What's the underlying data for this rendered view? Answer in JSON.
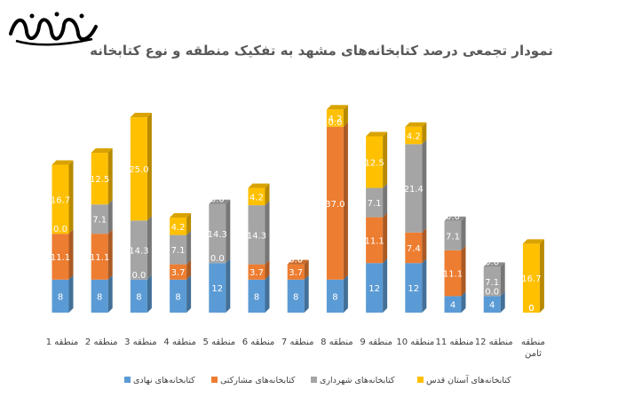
{
  "chart_data": {
    "type": "bar",
    "stacked": true,
    "title": "نمودار تجمعی درصد کتابخانه‌های مشهد به تفکیک منطقه و نوع کتابخانه",
    "categories": [
      "منطقه 1",
      "منطقه 2",
      "منطقه 3",
      "منطقه 4",
      "منطقه 5",
      "منطقه 6",
      "منطقه 7",
      "منطقه 8",
      "منطقه 9",
      "منطقه 10",
      "منطقه 11",
      "منطقه 12",
      "منطقه ثامن"
    ],
    "series": [
      {
        "name": "کتابخانه‌های نهادی",
        "color": "#5b9bd5",
        "values": [
          8,
          8,
          8,
          8,
          12,
          8,
          8,
          8,
          12,
          12,
          4,
          4,
          0
        ]
      },
      {
        "name": "کتابخانه‌های مشارکتی",
        "color": "#ed7d31",
        "values": [
          11.1,
          11.1,
          0.0,
          3.7,
          0.0,
          3.7,
          3.7,
          37.0,
          11.1,
          7.4,
          11.1,
          0.0,
          0
        ]
      },
      {
        "name": "کتابخانه‌های شهرداری",
        "color": "#a5a5a5",
        "values": [
          0.0,
          7.1,
          14.3,
          7.1,
          14.3,
          14.3,
          0.0,
          0.0,
          7.1,
          21.4,
          7.1,
          7.1,
          0
        ]
      },
      {
        "name": "کتابخانه‌های آستان قدس",
        "color": "#ffc000",
        "values": [
          16.7,
          12.5,
          25.0,
          4.2,
          0.0,
          4.2,
          0.0,
          4.2,
          12.5,
          4.2,
          0.0,
          0.0,
          16.7
        ]
      }
    ],
    "segment_labels": [
      [
        "8",
        "11.1",
        "0.0",
        "16.7"
      ],
      [
        "8",
        "11.1",
        "7.1",
        "12.5"
      ],
      [
        "8",
        "0.0",
        "14.3",
        "25.0"
      ],
      [
        "8",
        "3.7",
        "7.1",
        "4.2"
      ],
      [
        "12",
        "0.0",
        "14.3",
        "0.0"
      ],
      [
        "8",
        "3.7",
        "14.3",
        "4.2"
      ],
      [
        "8",
        "3.7",
        "0.0",
        "0.0"
      ],
      [
        "8",
        "37.0",
        "0.0",
        "4.2"
      ],
      [
        "12",
        "11.1",
        "7.1",
        "12.5"
      ],
      [
        "12",
        "7.4",
        "21.4",
        "4.2"
      ],
      [
        "4",
        "11.1",
        "7.1",
        "0.0"
      ],
      [
        "4",
        "0.0",
        "7.1",
        "0.0"
      ],
      [
        "0",
        "0",
        "0",
        "16.7"
      ]
    ],
    "legend": "bottom",
    "grid": false
  }
}
